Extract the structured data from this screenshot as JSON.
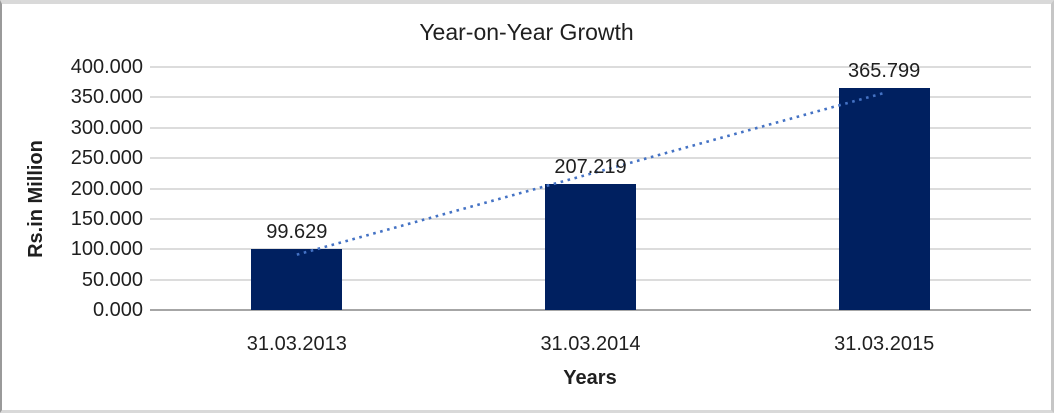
{
  "chart_data": {
    "type": "bar",
    "title": "Year-on-Year Growth",
    "categories": [
      "31.03.2013",
      "31.03.2014",
      "31.03.2015"
    ],
    "values": [
      99.629,
      207.219,
      365.799
    ],
    "data_labels": [
      "99.629",
      "207.219",
      "365.799"
    ],
    "xlabel": "Years",
    "ylabel": "Rs.in Million",
    "ylim": [
      0,
      400
    ],
    "ytick_values": [
      400,
      350,
      300,
      250,
      200,
      150,
      100,
      50,
      0
    ],
    "ytick_labels": [
      "400.000",
      "350.000",
      "300.000",
      "250.000",
      "200.000",
      "150.000",
      "100.000",
      "50.000",
      "0.000"
    ],
    "grid": true,
    "legend": false,
    "bar_color": "#002060",
    "trendline": {
      "type": "linear",
      "style": "dotted",
      "color": "#4472c4"
    }
  }
}
